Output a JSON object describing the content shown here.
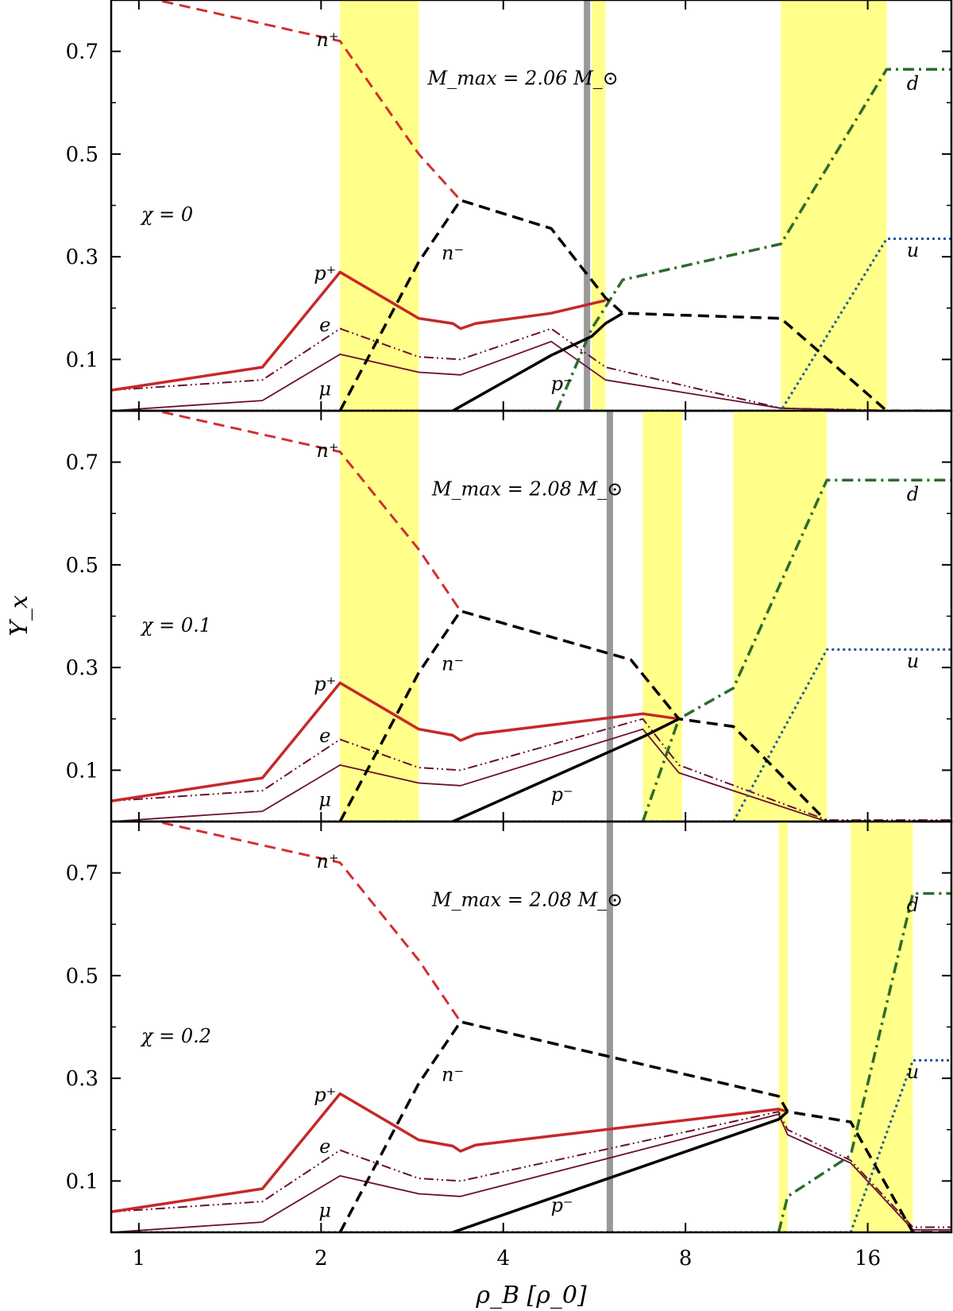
{
  "chart_data": {
    "type": "line",
    "figure_title": "",
    "xlabel": "ρ_B [ρ_0]",
    "ylabel": "Y_x",
    "xscale": "log2",
    "xlim": [
      0.9,
      22
    ],
    "ylim": [
      0,
      0.8
    ],
    "x_ticks": [
      1,
      2,
      4,
      8,
      16
    ],
    "x_tick_labels": [
      "1",
      "2",
      "4",
      "8",
      "16"
    ],
    "y_ticks": [
      0.1,
      0.3,
      0.5,
      0.7
    ],
    "y_tick_labels": [
      "0.1",
      "0.3",
      "0.5",
      "0.7"
    ],
    "series_styles": {
      "n+": {
        "label": "n⁺",
        "color": "#d03030",
        "dash": "14,8",
        "width": 3
      },
      "n-": {
        "label": "n⁻",
        "color": "#000000",
        "dash": "14,8",
        "width": 3.5
      },
      "p+": {
        "label": "p⁺",
        "color": "#c62828",
        "dash": "",
        "width": 3.5
      },
      "p-": {
        "label": "p⁻",
        "color": "#000000",
        "dash": "",
        "width": 3.5
      },
      "e": {
        "label": "e",
        "color": "#6a0f30",
        "dash": "12,4,2,4,2,4",
        "width": 2
      },
      "mu": {
        "label": "μ",
        "color": "#6a0f30",
        "dash": "",
        "width": 1.8
      },
      "d": {
        "label": "d",
        "color": "#2e6b2e",
        "dash": "14,6,3,6",
        "width": 3.5
      },
      "u": {
        "label": "u",
        "color": "#1f5a96",
        "dash": "3,4",
        "width": 3
      }
    },
    "panels": [
      {
        "chi_label": "χ = 0",
        "mmax_label": "M_max = 2.06 M_⊙",
        "max_mass_density": 5.5,
        "mixed_phase_bands": [
          [
            2.15,
            2.9
          ],
          [
            5.6,
            5.9
          ],
          [
            11.5,
            17.2
          ]
        ],
        "series": [
          {
            "key": "n+",
            "x": [
              0.9,
              2.15,
              2.9,
              3.4,
              4.8,
              5.9,
              6.3
            ],
            "y": [
              0.82,
              0.72,
              0.5,
              0.41,
              0.355,
              0.22,
              0.19
            ]
          },
          {
            "key": "n-",
            "x": [
              2.15,
              2.9,
              3.4,
              4.8,
              5.9,
              6.3,
              11.5,
              17.2
            ],
            "y": [
              0.0,
              0.29,
              0.41,
              0.355,
              0.22,
              0.19,
              0.18,
              0.0
            ]
          },
          {
            "key": "p+",
            "x": [
              0.9,
              1.6,
              2.15,
              2.9,
              3.3,
              3.4,
              3.6,
              4.8,
              5.9
            ],
            "y": [
              0.04,
              0.085,
              0.27,
              0.18,
              0.17,
              0.16,
              0.17,
              0.19,
              0.215
            ]
          },
          {
            "key": "p-",
            "x": [
              3.3,
              4.8,
              5.6,
              5.9,
              6.3
            ],
            "y": [
              0.0,
              0.108,
              0.145,
              0.17,
              0.19
            ]
          },
          {
            "key": "e",
            "x": [
              0.9,
              1.6,
              2.15,
              2.9,
              3.4,
              4.8,
              5.9,
              11.5,
              17.2,
              22
            ],
            "y": [
              0.04,
              0.06,
              0.16,
              0.105,
              0.1,
              0.16,
              0.085,
              0.005,
              0.001,
              0.001
            ]
          },
          {
            "key": "mu",
            "x": [
              0.9,
              1.6,
              2.15,
              2.9,
              3.4,
              4.8,
              5.9,
              11.5,
              17.2
            ],
            "y": [
              0.0,
              0.02,
              0.11,
              0.075,
              0.07,
              0.135,
              0.06,
              0.005,
              0.0
            ]
          },
          {
            "key": "d",
            "x": [
              4.9,
              5.6,
              6.3,
              11.5,
              17.2,
              22
            ],
            "y": [
              0.0,
              0.16,
              0.255,
              0.325,
              0.665,
              0.665
            ]
          },
          {
            "key": "u",
            "x": [
              0.9,
              11.5,
              17.2,
              22
            ],
            "y": [
              0.0,
              0.0,
              0.335,
              0.335
            ]
          }
        ],
        "labels": {
          "n+": "n⁺",
          "n-": "n⁻",
          "p+": "p⁺",
          "p-": "p⁻",
          "e": "e",
          "mu": "μ",
          "d": "d",
          "u": "u"
        }
      },
      {
        "chi_label": "χ = 0.1",
        "mmax_label": "M_max = 2.08 M_⊙",
        "max_mass_density": 6.0,
        "mixed_phase_bands": [
          [
            2.15,
            2.9
          ],
          [
            6.8,
            7.9
          ],
          [
            9.6,
            13.7
          ]
        ],
        "series": [
          {
            "key": "n+",
            "x": [
              0.9,
              2.15,
              2.9,
              3.4,
              6.5,
              7.8
            ],
            "y": [
              0.82,
              0.72,
              0.53,
              0.41,
              0.315,
              0.2
            ]
          },
          {
            "key": "n-",
            "x": [
              2.15,
              2.9,
              3.4,
              6.5,
              7.8,
              9.6,
              13.7,
              22
            ],
            "y": [
              0.0,
              0.29,
              0.41,
              0.315,
              0.2,
              0.185,
              0.0,
              0.0
            ]
          },
          {
            "key": "p+",
            "x": [
              0.9,
              1.6,
              2.15,
              2.9,
              3.3,
              3.4,
              3.6,
              6.8,
              7.8
            ],
            "y": [
              0.04,
              0.085,
              0.27,
              0.18,
              0.168,
              0.158,
              0.17,
              0.21,
              0.2
            ]
          },
          {
            "key": "p-",
            "x": [
              3.3,
              6.8,
              7.8
            ],
            "y": [
              0.0,
              0.165,
              0.2
            ]
          },
          {
            "key": "e",
            "x": [
              0.9,
              1.6,
              2.15,
              2.9,
              3.4,
              6.8,
              7.8,
              13.7,
              22
            ],
            "y": [
              0.04,
              0.06,
              0.16,
              0.105,
              0.1,
              0.2,
              0.11,
              0.003,
              0.003
            ]
          },
          {
            "key": "mu",
            "x": [
              0.9,
              1.6,
              2.15,
              2.9,
              3.4,
              6.8,
              7.8,
              13.7
            ],
            "y": [
              0.0,
              0.02,
              0.11,
              0.075,
              0.07,
              0.18,
              0.095,
              0.0
            ]
          },
          {
            "key": "d",
            "x": [
              6.8,
              7.8,
              9.6,
              13.7,
              22
            ],
            "y": [
              0.0,
              0.2,
              0.26,
              0.665,
              0.665
            ]
          },
          {
            "key": "u",
            "x": [
              0.9,
              9.6,
              13.7,
              22
            ],
            "y": [
              0.0,
              0.0,
              0.335,
              0.335
            ]
          }
        ],
        "labels": {
          "n+": "n⁺",
          "n-": "n⁻",
          "p+": "p⁺",
          "p-": "p⁻",
          "e": "e",
          "mu": "μ",
          "d": "d",
          "u": "u"
        }
      },
      {
        "chi_label": "χ = 0.2",
        "mmax_label": "M_max = 2.08 M_⊙",
        "max_mass_density": 6.0,
        "mixed_phase_bands": [
          [
            11.4,
            11.8
          ],
          [
            15.0,
            19.0
          ]
        ],
        "series": [
          {
            "key": "n+",
            "x": [
              0.9,
              2.15,
              2.9,
              3.4,
              11.4,
              11.8
            ],
            "y": [
              0.82,
              0.72,
              0.53,
              0.41,
              0.265,
              0.235
            ]
          },
          {
            "key": "n-",
            "x": [
              2.15,
              2.9,
              3.4,
              11.4,
              11.8,
              15.0,
              19.0,
              22
            ],
            "y": [
              0.0,
              0.29,
              0.41,
              0.265,
              0.235,
              0.215,
              0.0,
              0.0
            ]
          },
          {
            "key": "p+",
            "x": [
              0.9,
              1.6,
              2.15,
              2.9,
              3.3,
              3.4,
              3.6,
              11.4,
              11.8
            ],
            "y": [
              0.04,
              0.085,
              0.27,
              0.18,
              0.168,
              0.158,
              0.17,
              0.24,
              0.235
            ]
          },
          {
            "key": "p-",
            "x": [
              3.3,
              11.4,
              11.8
            ],
            "y": [
              0.0,
              0.22,
              0.235
            ]
          },
          {
            "key": "e",
            "x": [
              0.9,
              1.6,
              2.15,
              2.9,
              3.4,
              11.4,
              11.8,
              15.0,
              19.0,
              22
            ],
            "y": [
              0.04,
              0.06,
              0.16,
              0.105,
              0.1,
              0.235,
              0.2,
              0.14,
              0.01,
              0.01
            ]
          },
          {
            "key": "mu",
            "x": [
              0.9,
              1.6,
              2.15,
              2.9,
              3.4,
              11.4,
              11.8,
              15.0,
              19.0,
              22
            ],
            "y": [
              0.0,
              0.02,
              0.11,
              0.075,
              0.07,
              0.23,
              0.19,
              0.135,
              0.005,
              0.005
            ]
          },
          {
            "key": "d",
            "x": [
              11.4,
              11.8,
              15.0,
              19.0,
              22
            ],
            "y": [
              0.0,
              0.07,
              0.15,
              0.66,
              0.66
            ]
          },
          {
            "key": "u",
            "x": [
              0.9,
              15.0,
              19.0,
              22
            ],
            "y": [
              0.0,
              0.0,
              0.335,
              0.335
            ]
          }
        ],
        "labels": {
          "n+": "n⁺",
          "n-": "n⁻",
          "p+": "p⁺",
          "p-": "p⁻",
          "e": "e",
          "mu": "μ",
          "d": "d",
          "u": "u"
        }
      }
    ]
  }
}
